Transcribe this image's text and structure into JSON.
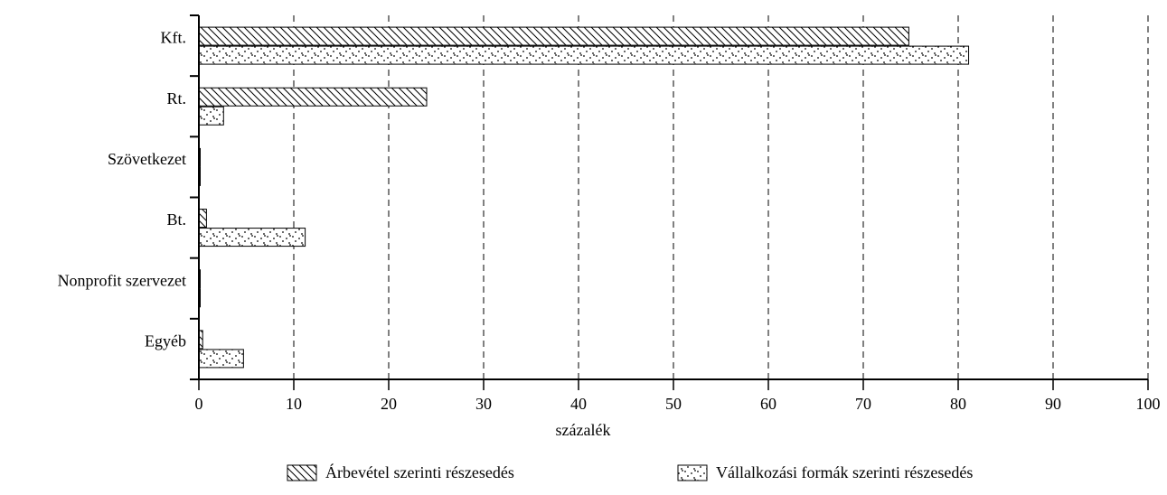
{
  "chart_data": {
    "type": "bar",
    "orientation": "horizontal",
    "categories": [
      "Kft.",
      "Rt.",
      "Szövetkezet",
      "Bt.",
      "Nonprofit szervezet",
      "Egyéb"
    ],
    "series": [
      {
        "name": "Árbevétel szerinti részesedés",
        "pattern": "hatched",
        "values": [
          74.8,
          24.0,
          0.1,
          0.8,
          0.1,
          0.4
        ]
      },
      {
        "name": "Vállalkozási formák szerinti részesedés",
        "pattern": "dotted",
        "values": [
          81.1,
          2.6,
          0.1,
          11.2,
          0.1,
          4.7
        ]
      }
    ],
    "xlabel": "százalék",
    "ylabel": "",
    "title": "",
    "xlim": [
      0,
      100
    ],
    "xticks": [
      "0",
      "10",
      "20",
      "30",
      "40",
      "50",
      "60",
      "70",
      "80",
      "90",
      "100"
    ],
    "grid": "vertical dashed",
    "legend_position": "bottom",
    "colors": {
      "ink": "#000000",
      "background": "#ffffff"
    }
  }
}
